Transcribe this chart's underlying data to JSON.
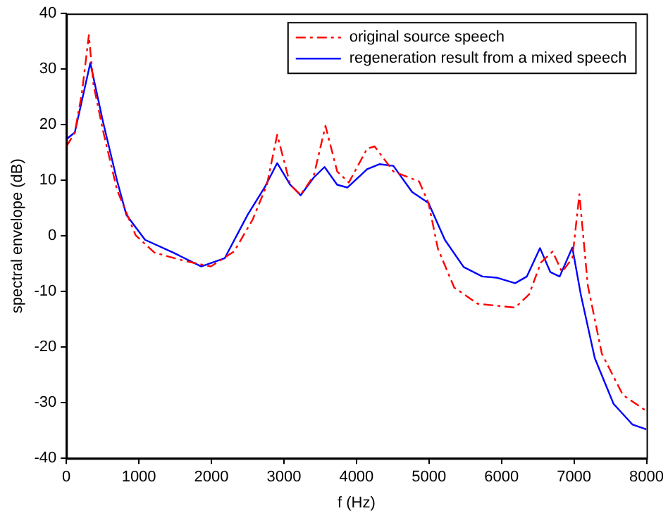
{
  "chart_data": {
    "type": "line",
    "xlabel": "f (Hz)",
    "ylabel": "spectral envelope (dB)",
    "xlim": [
      0,
      8000
    ],
    "xticks": [
      0,
      1000,
      2000,
      3000,
      4000,
      5000,
      6000,
      7000,
      8000
    ],
    "ylim": [
      -40,
      40
    ],
    "yticks": [
      -40,
      -30,
      -20,
      -10,
      0,
      10,
      20,
      30,
      40
    ],
    "grid": false,
    "legend": "top right",
    "marker": "none",
    "series": [
      {
        "name": "original source speech",
        "color": "#ff0000",
        "line_style": "dashed",
        "x": [
          0,
          116,
          213,
          310,
          374,
          504,
          698,
          956,
          1214,
          1602,
          1990,
          2313,
          2571,
          2765,
          2907,
          3087,
          3230,
          3411,
          3573,
          3734,
          3895,
          4147,
          4250,
          4509,
          4864,
          4994,
          5123,
          5349,
          5672,
          6188,
          6382,
          6543,
          6705,
          6835,
          6977,
          7074,
          7190,
          7384,
          7674,
          8000
        ],
        "values": [
          16.1,
          18.6,
          25.6,
          36.1,
          27.2,
          19,
          8.3,
          0.1,
          -3,
          -4.4,
          -5.5,
          -2.8,
          3,
          9.2,
          18.2,
          9.2,
          7.4,
          10.8,
          19.8,
          11.6,
          9.6,
          15.7,
          16.1,
          11.6,
          9.8,
          5.9,
          -2.3,
          -9.3,
          -12.2,
          -12.9,
          -10.5,
          -4.8,
          -2.8,
          -6.5,
          -4,
          7.5,
          -8.9,
          -21.2,
          -28.6,
          -31.5
        ]
      },
      {
        "name": "regeneration result from a mixed speech",
        "color": "#0000ff",
        "line_style": "solid",
        "x": [
          0,
          116,
          330,
          504,
          698,
          827,
          1085,
          1473,
          1860,
          2184,
          2500,
          2733,
          2907,
          3087,
          3230,
          3411,
          3560,
          3734,
          3876,
          4147,
          4315,
          4509,
          4767,
          4994,
          5219,
          5478,
          5736,
          5930,
          6188,
          6350,
          6531,
          6673,
          6802,
          6977,
          7093,
          7287,
          7545,
          7804,
          8000
        ],
        "values": [
          17.4,
          18.6,
          31.1,
          20.6,
          10,
          3.8,
          -0.7,
          -3,
          -5.5,
          -4,
          3.8,
          8.7,
          13.1,
          9.2,
          7.3,
          10.5,
          12.4,
          9.2,
          8.7,
          12,
          12.9,
          12.6,
          7.9,
          5.9,
          -0.7,
          -5.6,
          -7.3,
          -7.5,
          -8.5,
          -7.3,
          -2.2,
          -6.5,
          -7.3,
          -2.1,
          -10.5,
          -22,
          -30.2,
          -33.9,
          -34.8
        ]
      }
    ]
  }
}
